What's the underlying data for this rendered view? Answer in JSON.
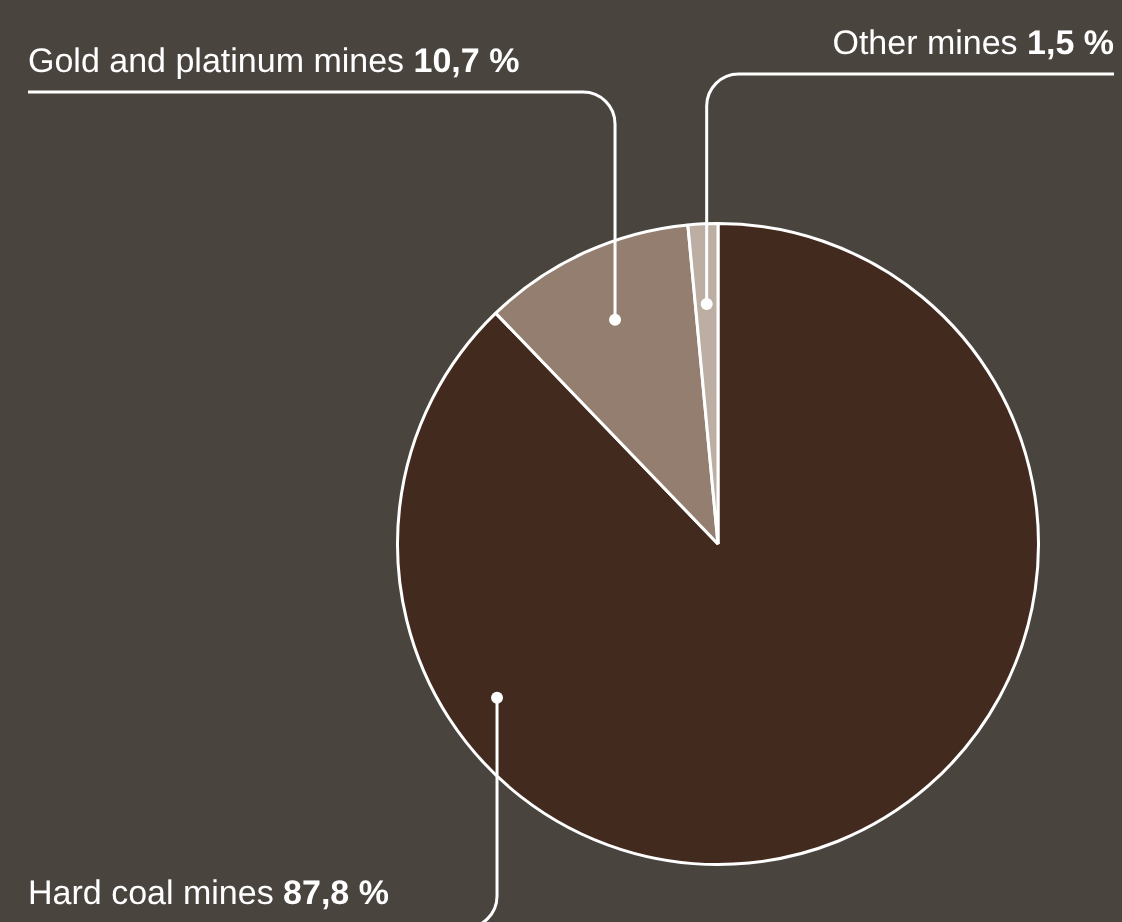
{
  "chart_data": {
    "type": "pie",
    "categories": [
      "Hard coal mines",
      "Gold and platinum mines",
      "Other mines"
    ],
    "values": [
      87.8,
      10.7,
      1.5
    ],
    "colors": [
      "#432a1f",
      "#937e6f",
      "#bcaea3"
    ],
    "value_labels": [
      "87,8 %",
      "10,7 %",
      "1,5 %"
    ],
    "legend": false
  }
}
